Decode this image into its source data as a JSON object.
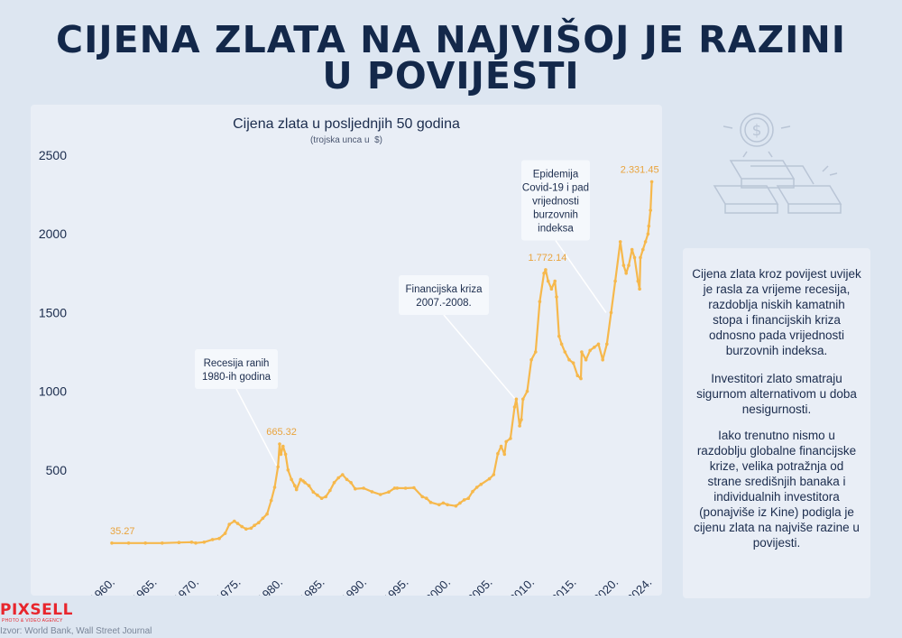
{
  "page": {
    "title_line1": "CIJENA ZLATA NA NAJVIŠOJ JE RAZINI",
    "title_line2": "U POVIJESTI",
    "side_text": [
      "Cijena zlata kroz povijest uvijek je rasla za vrijeme recesija, razdoblja niskih kamatnih stopa i financijskih kriza odnosno pada vrijednosti burzovnih indeksa.",
      "Investitori zlato smatraju sigurnom alternativom u doba nesigurnosti.",
      "Iako trenutno nismo u razdoblju globalne financijske krize, velika potražnja od strane središnjih banaka i individualnih investitora (ponajviše iz Kine) podigla je cijenu zlata na najviše razine u povijesti."
    ],
    "logo": "PIXSELL",
    "logo_tagline": "PHOTO & VIDEO AGENCY",
    "source": "Izvor: World Bank, Wall Street Journal",
    "decoration_icon": "gold-bars-coin-icon"
  },
  "chart_data": {
    "type": "line",
    "title": "Cijena zlata u posljednjih 50 godina",
    "subtitle": "(trojska unca u  $)",
    "xlim": [
      1960,
      2024.5
    ],
    "ylim": [
      0,
      2500
    ],
    "y_ticks": [
      500,
      1000,
      1500,
      2000,
      2500
    ],
    "x_ticks": [
      1960,
      1965,
      1970,
      1975,
      1980,
      1985,
      1990,
      1995,
      2000,
      2005,
      2010,
      2015,
      2020,
      2024
    ],
    "x_tick_labels": [
      "1960.",
      "1965.",
      "1970.",
      "1975.",
      "1980.",
      "1985.",
      "1990.",
      "1995.",
      "2000.",
      "2005.",
      "2010.",
      "2015.",
      "2020.",
      "2024."
    ],
    "grid": false,
    "legend": "none",
    "line_color": "#f6b84c",
    "label_color": "#e9a33c",
    "series": [
      {
        "x": [
          1960,
          1962,
          1964,
          1966,
          1968,
          1969.5,
          1970,
          1971,
          1972,
          1972.8,
          1973.5,
          1974,
          1974.6,
          1975,
          1975.5,
          1976,
          1976.6,
          1977,
          1977.5,
          1978,
          1978.5,
          1979,
          1979.4,
          1979.8,
          1980,
          1980.15,
          1980.4,
          1980.7,
          1981,
          1981.4,
          1981.8,
          1982,
          1982.5,
          1982.8,
          1983,
          1983.5,
          1984,
          1984.5,
          1985,
          1985.5,
          1986,
          1986.5,
          1987,
          1987.5,
          1988,
          1988.5,
          1989,
          1990,
          1991,
          1992,
          1993,
          1993.7,
          1994,
          1995,
          1996,
          1997,
          1997.5,
          1998,
          1999,
          1999.5,
          2000,
          2001,
          2001.5,
          2002,
          2002.5,
          2003,
          2003.5,
          2004,
          2005,
          2005.5,
          2006,
          2006.4,
          2006.8,
          2007,
          2007.5,
          2008,
          2008.2,
          2008.6,
          2008.8,
          2009,
          2009.5,
          2010,
          2010.5,
          2011,
          2011.5,
          2011.7,
          2012,
          2012.4,
          2012.8,
          2013,
          2013.3,
          2013.6,
          2014,
          2014.5,
          2015,
          2015.5,
          2015.9,
          2016,
          2016.5,
          2017,
          2017.5,
          2018,
          2018.5,
          2019,
          2019.5,
          2020,
          2020.6,
          2021,
          2021.3,
          2021.6,
          2022,
          2022.3,
          2022.7,
          2022.9,
          2023,
          2023.3,
          2023.6,
          2023.9,
          2024,
          2024.2,
          2024.35
        ],
        "y": [
          35.27,
          35.3,
          35.3,
          35.4,
          39,
          41,
          36,
          41,
          58,
          65,
          97,
          154,
          175,
          160,
          140,
          125,
          130,
          148,
          165,
          193,
          220,
          306,
          390,
          520,
          665.32,
          600,
          650,
          600,
          500,
          440,
          400,
          375,
          440,
          430,
          420,
          400,
          360,
          340,
          320,
          330,
          370,
          420,
          450,
          470,
          440,
          420,
          380,
          384,
          362,
          344,
          360,
          385,
          385,
          384,
          387,
          330,
          320,
          294,
          279,
          290,
          279,
          271,
          290,
          310,
          320,
          363,
          390,
          409,
          444,
          470,
          604,
          650,
          600,
          680,
          700,
          900,
          950,
          780,
          820,
          950,
          1000,
          1200,
          1250,
          1570,
          1750,
          1772.14,
          1700,
          1650,
          1700,
          1600,
          1350,
          1300,
          1250,
          1200,
          1180,
          1100,
          1080,
          1250,
          1200,
          1260,
          1280,
          1300,
          1200,
          1300,
          1500,
          1700,
          1950,
          1800,
          1750,
          1800,
          1900,
          1850,
          1700,
          1650,
          1850,
          1900,
          1950,
          2000,
          2050,
          2150,
          2331.45
        ]
      }
    ],
    "data_labels": [
      {
        "x": 1960,
        "y": 35.27,
        "text": "35.27"
      },
      {
        "x": 1980,
        "y": 665.32,
        "text": "665.32"
      },
      {
        "x": 2011.7,
        "y": 1772.14,
        "text": "1.772.14"
      },
      {
        "x": 2024.35,
        "y": 2331.45,
        "text": "2.331.45"
      }
    ],
    "annotations": [
      {
        "lines": [
          "Recesija ranih",
          "1980-ih godina"
        ],
        "target": [
          1979.7,
          520
        ]
      },
      {
        "lines": [
          "Financijska kriza",
          "2007.-2008."
        ],
        "target": [
          2008.4,
          930
        ]
      },
      {
        "lines": [
          "Epidemija",
          "Covid-19 i pad",
          "vrijednosti",
          "burzovnih",
          "indeksa"
        ],
        "target": [
          2018.9,
          1500
        ]
      }
    ]
  }
}
